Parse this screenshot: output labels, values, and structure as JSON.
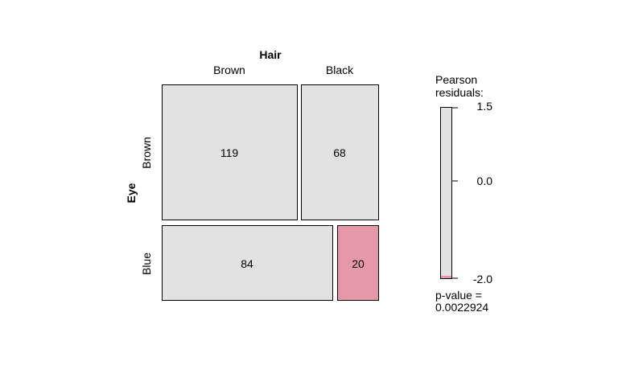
{
  "chart_data": {
    "type": "mosaic",
    "title_x": "Hair",
    "title_y": "Eye",
    "x_categories": [
      "Brown",
      "Black"
    ],
    "y_categories": [
      "Brown",
      "Blue"
    ],
    "cells": [
      {
        "eye": "Brown",
        "hair": "Brown",
        "count": 119,
        "shaded": false
      },
      {
        "eye": "Brown",
        "hair": "Black",
        "count": 68,
        "shaded": false
      },
      {
        "eye": "Blue",
        "hair": "Brown",
        "count": 84,
        "shaded": false
      },
      {
        "eye": "Blue",
        "hair": "Black",
        "count": 20,
        "shaded": true
      }
    ],
    "legend": {
      "title_line1": "Pearson",
      "title_line2": "residuals:",
      "ticks": [
        "1.5",
        "0.0",
        "-2.0"
      ],
      "range": [
        -2.0,
        1.5
      ],
      "pvalue_label": "p-value =",
      "pvalue": "0.0022924"
    },
    "colors": {
      "neutral": "#e2e2e2",
      "negative": "#e598a8",
      "border": "#000000"
    }
  }
}
